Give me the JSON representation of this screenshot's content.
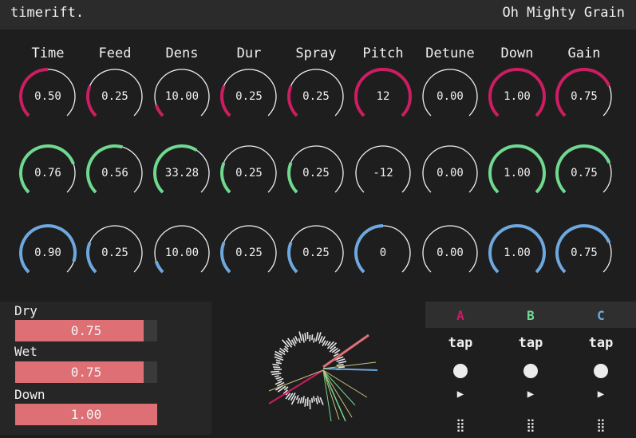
{
  "app": {
    "name": "timerift.",
    "preset": "Oh Mighty Grain"
  },
  "params": [
    "Time",
    "Feed",
    "Dens",
    "Dur",
    "Spray",
    "Pitch",
    "Detune",
    "Down",
    "Gain"
  ],
  "colors": {
    "a": "#cc1d62",
    "b": "#6fd98f",
    "c": "#6ea8de",
    "track": "#f0f0f0",
    "fill": "#dd6f75"
  },
  "rows": [
    {
      "name": "A",
      "color": "#cc1d62",
      "knobs": [
        {
          "label": "0.50",
          "level": 0.5
        },
        {
          "label": "0.25",
          "level": 0.25
        },
        {
          "label": "10.00",
          "level": 0.1
        },
        {
          "label": "0.25",
          "level": 0.25
        },
        {
          "label": "0.25",
          "level": 0.25
        },
        {
          "label": "12",
          "level": 1.0
        },
        {
          "label": "0.00",
          "level": 0.0
        },
        {
          "label": "1.00",
          "level": 1.0
        },
        {
          "label": "0.75",
          "level": 0.75
        }
      ]
    },
    {
      "name": "B",
      "color": "#6fd98f",
      "knobs": [
        {
          "label": "0.76",
          "level": 0.76
        },
        {
          "label": "0.56",
          "level": 0.56
        },
        {
          "label": "33.28",
          "level": 0.62
        },
        {
          "label": "0.25",
          "level": 0.25
        },
        {
          "label": "0.25",
          "level": 0.25
        },
        {
          "label": "-12",
          "level": 0.0
        },
        {
          "label": "0.00",
          "level": 0.0
        },
        {
          "label": "1.00",
          "level": 1.0
        },
        {
          "label": "0.75",
          "level": 0.75
        }
      ]
    },
    {
      "name": "C",
      "color": "#6ea8de",
      "knobs": [
        {
          "label": "0.90",
          "level": 0.9
        },
        {
          "label": "0.25",
          "level": 0.25
        },
        {
          "label": "10.00",
          "level": 0.1
        },
        {
          "label": "0.25",
          "level": 0.25
        },
        {
          "label": "0.25",
          "level": 0.25
        },
        {
          "label": "0",
          "level": 0.5
        },
        {
          "label": "0.00",
          "level": 0.0
        },
        {
          "label": "1.00",
          "level": 1.0
        },
        {
          "label": "0.75",
          "level": 0.75
        }
      ]
    }
  ],
  "mix": [
    {
      "label": "Dry",
      "value": "0.75",
      "level": 0.75
    },
    {
      "label": "Wet",
      "value": "0.75",
      "level": 0.75
    },
    {
      "label": "Down",
      "value": "1.00",
      "level": 1.0
    }
  ],
  "taps": [
    {
      "letter": "A",
      "color": "#cc1d62",
      "word": "tap",
      "play": "▶",
      "grip": "⣿"
    },
    {
      "letter": "B",
      "color": "#6fd98f",
      "word": "tap",
      "play": "▶",
      "grip": "⣿"
    },
    {
      "letter": "C",
      "color": "#6ea8de",
      "word": "tap",
      "play": "▶",
      "grip": "⣿"
    }
  ]
}
